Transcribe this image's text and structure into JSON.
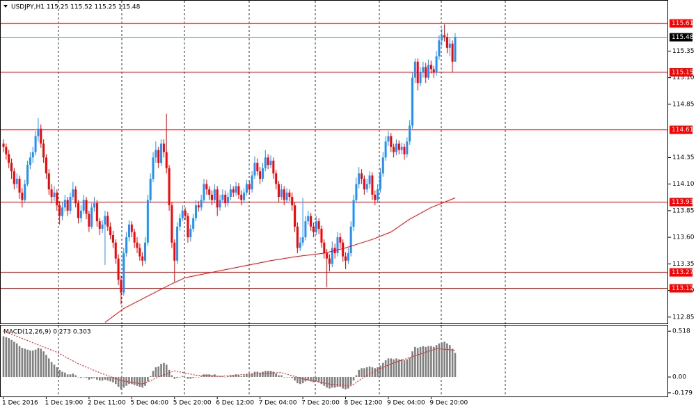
{
  "chart_data": {
    "type": "candlestick",
    "title": "USDJPY,H1  115.25 115.52 115.25 115.48",
    "up_color": "#1e90ff",
    "down_color": "#ff0000",
    "ylim": [
      112.79,
      115.83
    ],
    "yticks": [
      112.85,
      {
        "value": 113.1,
        "label": "113.10"
      },
      113.35,
      {
        "value": 113.6,
        "label": "113.60"
      },
      113.85,
      {
        "value": 114.1,
        "label": "114.10"
      },
      114.35,
      114.85,
      {
        "value": 115.1,
        "label": "115.10"
      },
      115.35
    ],
    "levels": [
      115.61,
      115.15,
      114.61,
      113.93,
      113.27,
      113.12
    ],
    "level_color": "#ff0000",
    "bid": 115.48,
    "xlabels": [
      {
        "index": 0,
        "label": "1 Dec 2016"
      },
      {
        "index": 16,
        "label": "1 Dec 19:00"
      },
      {
        "index": 32,
        "label": "2 Dec 11:00"
      },
      {
        "index": 48,
        "label": "5 Dec 04:00"
      },
      {
        "index": 64,
        "label": "5 Dec 20:00"
      },
      {
        "index": 80,
        "label": "6 Dec 12:00"
      },
      {
        "index": 96,
        "label": "7 Dec 04:00"
      },
      {
        "index": 112,
        "label": "7 Dec 20:00"
      },
      {
        "index": 128,
        "label": "8 Dec 12:00"
      },
      {
        "index": 144,
        "label": "9 Dec 04:00"
      },
      {
        "index": 160,
        "label": "9 Dec 20:00"
      }
    ],
    "candles": [
      [
        114.48,
        114.52,
        114.4,
        114.45
      ],
      [
        114.45,
        114.48,
        114.33,
        114.38
      ],
      [
        114.38,
        114.42,
        114.25,
        114.3
      ],
      [
        114.3,
        114.34,
        114.15,
        114.22
      ],
      [
        114.22,
        114.25,
        114.05,
        114.1
      ],
      [
        114.1,
        114.2,
        114.06,
        114.15
      ],
      [
        114.15,
        114.18,
        113.96,
        114.02
      ],
      [
        114.02,
        114.06,
        113.88,
        113.95
      ],
      [
        113.95,
        114.14,
        113.92,
        114.1
      ],
      [
        114.1,
        114.32,
        114.08,
        114.28
      ],
      [
        114.28,
        114.4,
        114.24,
        114.35
      ],
      [
        114.35,
        114.45,
        114.3,
        114.4
      ],
      [
        114.4,
        114.6,
        114.37,
        114.55
      ],
      [
        114.55,
        114.72,
        114.5,
        114.62
      ],
      [
        114.62,
        114.66,
        114.44,
        114.48
      ],
      [
        114.48,
        114.52,
        114.3,
        114.35
      ],
      [
        114.35,
        114.38,
        114.15,
        114.2
      ],
      [
        114.2,
        114.24,
        114.0,
        114.05
      ],
      [
        114.05,
        114.1,
        113.92,
        113.98
      ],
      [
        113.98,
        114.08,
        113.94,
        114.02
      ],
      [
        114.02,
        114.05,
        113.85,
        113.9
      ],
      [
        113.9,
        113.94,
        113.72,
        113.8
      ],
      [
        113.8,
        113.93,
        113.76,
        113.88
      ],
      [
        113.88,
        114.0,
        113.84,
        113.95
      ],
      [
        113.95,
        113.98,
        113.8,
        113.85
      ],
      [
        113.85,
        114.02,
        113.82,
        113.98
      ],
      [
        113.98,
        114.12,
        113.95,
        114.05
      ],
      [
        114.05,
        114.08,
        113.88,
        113.92
      ],
      [
        113.92,
        113.95,
        113.73,
        113.78
      ],
      [
        113.78,
        113.9,
        113.74,
        113.85
      ],
      [
        113.85,
        114.0,
        113.82,
        113.95
      ],
      [
        113.95,
        113.98,
        113.77,
        113.82
      ],
      [
        113.82,
        113.85,
        113.65,
        113.7
      ],
      [
        113.7,
        113.92,
        113.68,
        113.88
      ],
      [
        113.88,
        113.98,
        113.84,
        113.92
      ],
      [
        113.92,
        113.95,
        113.7,
        113.75
      ],
      [
        113.75,
        113.78,
        113.62,
        113.68
      ],
      [
        113.68,
        113.76,
        113.64,
        113.72
      ],
      [
        113.72,
        113.85,
        113.34,
        113.8
      ],
      [
        113.8,
        113.84,
        113.66,
        113.7
      ],
      [
        113.7,
        113.74,
        113.58,
        113.62
      ],
      [
        113.62,
        113.66,
        113.5,
        113.55
      ],
      [
        113.55,
        113.58,
        113.35,
        113.4
      ],
      [
        113.4,
        113.44,
        113.15,
        113.2
      ],
      [
        113.2,
        113.24,
        112.97,
        113.08
      ],
      [
        113.08,
        113.5,
        113.05,
        113.45
      ],
      [
        113.45,
        113.65,
        113.42,
        113.6
      ],
      [
        113.6,
        113.76,
        113.56,
        113.72
      ],
      [
        113.72,
        113.75,
        113.6,
        113.65
      ],
      [
        113.65,
        113.68,
        113.5,
        113.55
      ],
      [
        113.55,
        113.6,
        113.45,
        113.5
      ],
      [
        113.5,
        113.54,
        113.38,
        113.42
      ],
      [
        113.42,
        113.46,
        113.33,
        113.38
      ],
      [
        113.38,
        113.6,
        113.35,
        113.55
      ],
      [
        113.55,
        114.0,
        113.52,
        113.95
      ],
      [
        113.95,
        114.2,
        113.92,
        114.15
      ],
      [
        114.15,
        114.4,
        114.12,
        114.35
      ],
      [
        114.35,
        114.5,
        114.3,
        114.42
      ],
      [
        114.42,
        114.45,
        114.25,
        114.3
      ],
      [
        114.3,
        114.52,
        114.27,
        114.48
      ],
      [
        114.48,
        114.52,
        114.35,
        114.4
      ],
      [
        114.4,
        114.76,
        114.2,
        114.25
      ],
      [
        114.25,
        114.28,
        113.85,
        113.9
      ],
      [
        113.9,
        113.93,
        113.5,
        113.55
      ],
      [
        113.55,
        113.58,
        113.18,
        113.38
      ],
      [
        113.38,
        113.74,
        113.35,
        113.7
      ],
      [
        113.7,
        113.82,
        113.66,
        113.78
      ],
      [
        113.78,
        113.9,
        113.75,
        113.85
      ],
      [
        113.85,
        113.88,
        113.76,
        113.8
      ],
      [
        113.8,
        113.83,
        113.55,
        113.6
      ],
      [
        113.6,
        113.72,
        113.56,
        113.68
      ],
      [
        113.68,
        113.82,
        113.65,
        113.78
      ],
      [
        113.78,
        113.95,
        113.75,
        113.9
      ],
      [
        113.9,
        113.94,
        113.84,
        113.88
      ],
      [
        113.88,
        114.0,
        113.85,
        113.95
      ],
      [
        113.95,
        114.15,
        113.92,
        114.1
      ],
      [
        114.1,
        114.14,
        114.0,
        114.05
      ],
      [
        114.05,
        114.08,
        113.95,
        114.0
      ],
      [
        114.0,
        114.04,
        113.9,
        113.95
      ],
      [
        113.95,
        114.1,
        113.92,
        114.05
      ],
      [
        114.05,
        114.08,
        113.8,
        113.88
      ],
      [
        113.88,
        114.0,
        113.85,
        113.95
      ],
      [
        113.95,
        114.05,
        113.92,
        114.0
      ],
      [
        114.0,
        114.04,
        113.88,
        113.92
      ],
      [
        113.92,
        114.02,
        113.89,
        113.98
      ],
      [
        113.98,
        114.1,
        113.95,
        114.05
      ],
      [
        114.05,
        114.08,
        113.98,
        114.02
      ],
      [
        114.02,
        114.12,
        113.99,
        114.08
      ],
      [
        114.08,
        114.11,
        113.96,
        114.0
      ],
      [
        114.0,
        114.04,
        113.9,
        113.95
      ],
      [
        113.95,
        114.06,
        113.92,
        114.02
      ],
      [
        114.02,
        114.14,
        113.99,
        114.1
      ],
      [
        114.1,
        114.13,
        114.0,
        114.05
      ],
      [
        114.05,
        114.22,
        114.02,
        114.18
      ],
      [
        114.18,
        114.36,
        114.15,
        114.3
      ],
      [
        114.3,
        114.34,
        114.18,
        114.22
      ],
      [
        114.22,
        114.26,
        114.1,
        114.15
      ],
      [
        114.15,
        114.3,
        114.12,
        114.25
      ],
      [
        114.25,
        114.42,
        114.22,
        114.35
      ],
      [
        114.35,
        114.38,
        114.24,
        114.28
      ],
      [
        114.28,
        114.37,
        114.25,
        114.32
      ],
      [
        114.32,
        114.35,
        114.15,
        114.2
      ],
      [
        114.2,
        114.23,
        114.05,
        114.1
      ],
      [
        114.1,
        114.13,
        113.93,
        113.98
      ],
      [
        113.98,
        114.1,
        113.95,
        114.05
      ],
      [
        114.05,
        114.08,
        113.9,
        113.95
      ],
      [
        113.95,
        114.06,
        113.92,
        114.02
      ],
      [
        114.02,
        114.05,
        113.94,
        113.98
      ],
      [
        113.98,
        114.02,
        113.85,
        113.9
      ],
      [
        113.9,
        113.93,
        113.65,
        113.7
      ],
      [
        113.7,
        113.74,
        113.45,
        113.5
      ],
      [
        113.5,
        113.6,
        113.47,
        113.55
      ],
      [
        113.55,
        113.97,
        113.52,
        113.6
      ],
      [
        113.6,
        113.8,
        113.57,
        113.75
      ],
      [
        113.75,
        113.85,
        113.72,
        113.8
      ],
      [
        113.8,
        113.83,
        113.66,
        113.7
      ],
      [
        113.7,
        113.74,
        113.6,
        113.65
      ],
      [
        113.65,
        113.8,
        113.62,
        113.75
      ],
      [
        113.75,
        113.78,
        113.63,
        113.68
      ],
      [
        113.68,
        113.71,
        113.5,
        113.55
      ],
      [
        113.55,
        113.58,
        113.4,
        113.45
      ],
      [
        113.45,
        113.49,
        113.13,
        113.4
      ],
      [
        113.4,
        113.44,
        113.28,
        113.35
      ],
      [
        113.35,
        113.56,
        113.32,
        113.5
      ],
      [
        113.5,
        113.54,
        113.4,
        113.45
      ],
      [
        113.45,
        113.65,
        113.42,
        113.6
      ],
      [
        113.6,
        113.64,
        113.5,
        113.55
      ],
      [
        113.55,
        113.58,
        113.37,
        113.42
      ],
      [
        113.42,
        113.46,
        113.3,
        113.38
      ],
      [
        113.38,
        113.5,
        113.35,
        113.45
      ],
      [
        113.45,
        113.75,
        113.42,
        113.7
      ],
      [
        113.7,
        114.0,
        113.66,
        113.95
      ],
      [
        113.95,
        114.16,
        113.92,
        114.1
      ],
      [
        114.1,
        114.26,
        114.06,
        114.2
      ],
      [
        114.2,
        114.24,
        114.1,
        114.15
      ],
      [
        114.15,
        114.18,
        114.0,
        114.05
      ],
      [
        114.05,
        114.15,
        114.02,
        114.1
      ],
      [
        114.1,
        114.22,
        114.06,
        114.18
      ],
      [
        114.18,
        114.21,
        113.95,
        114.0
      ],
      [
        114.0,
        114.04,
        113.9,
        113.95
      ],
      [
        113.95,
        114.1,
        113.92,
        114.05
      ],
      [
        114.05,
        114.25,
        114.02,
        114.2
      ],
      [
        114.2,
        114.4,
        114.17,
        114.35
      ],
      [
        114.35,
        114.55,
        114.32,
        114.5
      ],
      [
        114.5,
        114.6,
        114.46,
        114.55
      ],
      [
        114.55,
        114.58,
        114.4,
        114.45
      ],
      [
        114.45,
        114.48,
        114.35,
        114.4
      ],
      [
        114.4,
        114.52,
        114.37,
        114.48
      ],
      [
        114.48,
        114.51,
        114.38,
        114.42
      ],
      [
        114.42,
        114.49,
        114.38,
        114.45
      ],
      [
        114.45,
        114.48,
        114.33,
        114.38
      ],
      [
        114.38,
        114.54,
        114.35,
        114.5
      ],
      [
        114.5,
        114.7,
        114.47,
        114.65
      ],
      [
        114.65,
        115.15,
        114.62,
        115.1
      ],
      [
        115.1,
        115.28,
        115.05,
        115.25
      ],
      [
        115.25,
        115.28,
        114.98,
        115.05
      ],
      [
        115.05,
        115.2,
        115.02,
        115.15
      ],
      [
        115.15,
        115.25,
        115.1,
        115.2
      ],
      [
        115.2,
        115.24,
        115.05,
        115.1
      ],
      [
        115.1,
        115.27,
        115.08,
        115.22
      ],
      [
        115.22,
        115.26,
        115.14,
        115.18
      ],
      [
        115.18,
        115.21,
        115.1,
        115.15
      ],
      [
        115.15,
        115.35,
        115.12,
        115.3
      ],
      [
        115.3,
        115.5,
        115.27,
        115.45
      ],
      [
        115.45,
        115.56,
        115.4,
        115.5
      ],
      [
        115.5,
        115.6,
        115.44,
        115.48
      ],
      [
        115.48,
        115.52,
        115.33,
        115.38
      ],
      [
        115.38,
        115.47,
        115.3,
        115.42
      ],
      [
        115.42,
        115.45,
        115.15,
        115.25
      ],
      [
        115.25,
        115.52,
        115.25,
        115.48
      ]
    ],
    "ma": {
      "x": [
        38,
        45,
        55,
        62,
        68,
        80,
        90,
        100,
        110,
        120,
        128,
        138,
        145,
        152,
        160,
        169
      ],
      "values": [
        112.8,
        112.93,
        113.06,
        113.15,
        113.22,
        113.28,
        113.33,
        113.38,
        113.42,
        113.45,
        113.5,
        113.58,
        113.65,
        113.77,
        113.88,
        113.97
      ],
      "color": "#ff0000"
    },
    "macd": {
      "title": "MACD(12,26,9) 0.273 0.303",
      "color": "#808080",
      "ylim": [
        -0.22,
        0.59
      ],
      "yticks": [
        0.518,
        {
          "value": 0,
          "label": "0.00"
        },
        -0.179
      ],
      "values": [
        0.46,
        0.45,
        0.44,
        0.42,
        0.4,
        0.38,
        0.35,
        0.33,
        0.32,
        0.31,
        0.3,
        0.3,
        0.31,
        0.33,
        0.32,
        0.29,
        0.25,
        0.21,
        0.17,
        0.14,
        0.11,
        0.08,
        0.06,
        0.05,
        0.03,
        0.03,
        0.04,
        0.02,
        0.0,
        -0.01,
        0.0,
        -0.01,
        -0.03,
        -0.02,
        -0.01,
        -0.03,
        -0.04,
        -0.04,
        -0.03,
        -0.04,
        -0.05,
        -0.06,
        -0.08,
        -0.11,
        -0.14,
        -0.12,
        -0.1,
        -0.08,
        -0.08,
        -0.09,
        -0.1,
        -0.11,
        -0.12,
        -0.1,
        -0.05,
        0.01,
        0.07,
        0.11,
        0.12,
        0.15,
        0.16,
        0.14,
        0.08,
        0.02,
        -0.02,
        -0.01,
        0.0,
        0.01,
        0.0,
        -0.02,
        -0.02,
        -0.01,
        0.0,
        0.0,
        0.01,
        0.03,
        0.03,
        0.03,
        0.02,
        0.03,
        0.01,
        0.01,
        0.01,
        0.0,
        0.01,
        0.02,
        0.02,
        0.03,
        0.02,
        0.01,
        0.02,
        0.03,
        0.03,
        0.04,
        0.06,
        0.06,
        0.05,
        0.06,
        0.07,
        0.07,
        0.07,
        0.06,
        0.04,
        0.02,
        0.02,
        0.0,
        0.0,
        0.0,
        -0.01,
        -0.04,
        -0.07,
        -0.08,
        -0.07,
        -0.05,
        -0.04,
        -0.05,
        -0.06,
        -0.05,
        -0.06,
        -0.08,
        -0.1,
        -0.12,
        -0.13,
        -0.12,
        -0.12,
        -0.11,
        -0.11,
        -0.13,
        -0.14,
        -0.13,
        -0.09,
        -0.04,
        0.02,
        0.08,
        0.1,
        0.1,
        0.11,
        0.12,
        0.11,
        0.1,
        0.11,
        0.13,
        0.16,
        0.19,
        0.21,
        0.21,
        0.2,
        0.21,
        0.2,
        0.2,
        0.19,
        0.2,
        0.22,
        0.29,
        0.34,
        0.33,
        0.34,
        0.35,
        0.34,
        0.35,
        0.35,
        0.34,
        0.36,
        0.38,
        0.39,
        0.4,
        0.38,
        0.36,
        0.32,
        0.273
      ],
      "signal": {
        "x": [
          0,
          10,
          20,
          28,
          36,
          44,
          52,
          58,
          64,
          72,
          82,
          95,
          104,
          112,
          122,
          130,
          136,
          145,
          155,
          162,
          169
        ],
        "values": [
          0.52,
          0.4,
          0.28,
          0.15,
          0.05,
          -0.04,
          -0.08,
          0.0,
          0.07,
          0.02,
          0.01,
          0.04,
          0.05,
          -0.02,
          -0.08,
          -0.1,
          0.02,
          0.15,
          0.25,
          0.32,
          0.303
        ],
        "color": "#ff0000"
      }
    }
  }
}
